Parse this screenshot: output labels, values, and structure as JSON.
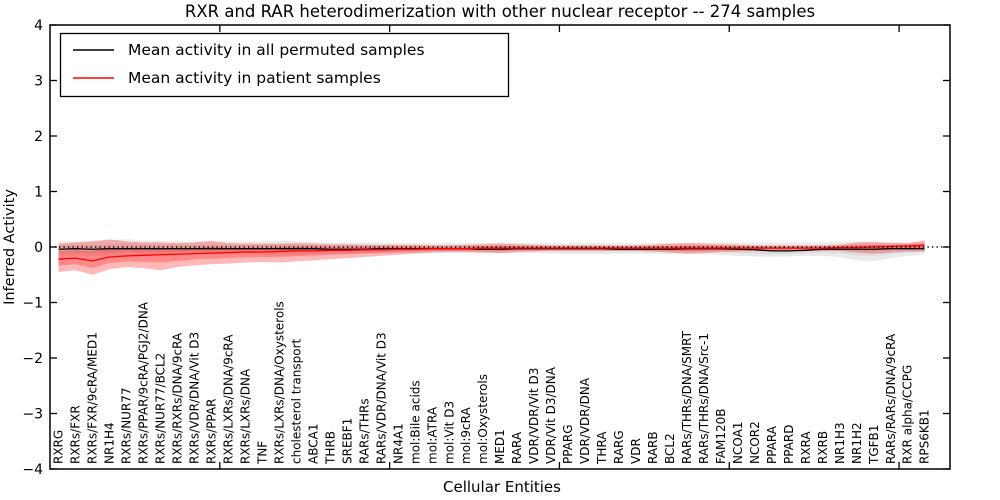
{
  "chart_data": {
    "type": "line",
    "title": "RXR and RAR heterodimerization with other nuclear receptor -- 274 samples",
    "xlabel": "Cellular Entities",
    "ylabel": "Inferred Activity",
    "ylim": [
      -4,
      4
    ],
    "xlim": [
      0,
      53
    ],
    "grid": false,
    "zero_line": {
      "value": 0,
      "style": "dotted",
      "color": "#000000"
    },
    "ytick_values": [
      4,
      3,
      2,
      1,
      0,
      -1,
      -2,
      -3,
      -4
    ],
    "ytick_labels": [
      "4",
      "3",
      "2",
      "1",
      "0",
      "−1",
      "−2",
      "−3",
      "−4"
    ],
    "xtick_positions": [
      10,
      20,
      30,
      40,
      50
    ],
    "legend": {
      "position": "upper left",
      "entries": [
        {
          "label": "Mean activity in all permuted samples",
          "color": "#000000"
        },
        {
          "label": "Mean activity in patient samples",
          "color": "#ff0000"
        }
      ]
    },
    "categories": [
      "RXRG",
      "RXRs/FXR",
      "RXRs/FXR/9cRA/MED1",
      "NR1H4",
      "RXRs/NUR77",
      "RXRs/PPAR/9cRA/PGJ2/DNA",
      "RXRs/NUR77/BCL2",
      "RXRs/RXRs/DNA/9cRA",
      "RXRs/VDR/DNA/Vit D3",
      "RXRs/PPAR",
      "RXRs/LXRs/DNA/9cRA",
      "RXRs/LXRs/DNA",
      "TNF",
      "RXRs/LXRs/DNA/Oxysterols",
      "cholesterol transport",
      "ABCA1",
      "THRB",
      "SREBF1",
      "RARs/THRs",
      "RARs/VDR/DNA/Vit D3",
      "NR4A1",
      "mol:Bile acids",
      "mol:ATRA",
      "mol:Vit D3",
      "mol:9cRA",
      "mol:Oxysterols",
      "MED1",
      "RARA",
      "VDR/VDR/Vit D3",
      "VDR/Vit D3/DNA",
      "PPARG",
      "VDR/VDR/DNA",
      "THRA",
      "RARG",
      "VDR",
      "RARB",
      "BCL2",
      "RARs/THRs/DNA/SMRT",
      "RARs/THRs/DNA/Src-1",
      "FAM120B",
      "NCOA1",
      "NCOR2",
      "PPARA",
      "PPARD",
      "RXRA",
      "RXRB",
      "NR1H3",
      "NR1H2",
      "TGFB1",
      "RARs/RARs/DNA/9cRA",
      "RXR alpha/CCPG",
      "RPS6KB1"
    ],
    "series": [
      {
        "name": "Mean activity in all permuted samples",
        "color": "#000000",
        "band_color": "#808080",
        "values": [
          -0.04,
          -0.03,
          -0.04,
          -0.03,
          -0.03,
          -0.03,
          -0.03,
          -0.03,
          -0.03,
          -0.03,
          -0.03,
          -0.03,
          -0.03,
          -0.03,
          -0.03,
          -0.03,
          -0.04,
          -0.04,
          -0.04,
          -0.03,
          -0.03,
          -0.03,
          -0.03,
          -0.03,
          -0.03,
          -0.04,
          -0.04,
          -0.03,
          -0.03,
          -0.03,
          -0.03,
          -0.03,
          -0.03,
          -0.04,
          -0.04,
          -0.04,
          -0.04,
          -0.03,
          -0.03,
          -0.03,
          -0.04,
          -0.05,
          -0.07,
          -0.07,
          -0.06,
          -0.04,
          -0.04,
          -0.04,
          -0.04,
          -0.03,
          -0.03,
          -0.03
        ],
        "band_upper": [
          0.1,
          0.1,
          0.11,
          0.12,
          0.14,
          0.12,
          0.11,
          0.1,
          0.1,
          0.1,
          0.1,
          0.1,
          0.1,
          0.11,
          0.1,
          0.09,
          0.08,
          0.08,
          0.08,
          0.08,
          0.07,
          0.07,
          0.07,
          0.07,
          0.07,
          0.07,
          0.08,
          0.07,
          0.07,
          0.07,
          0.07,
          0.07,
          0.07,
          0.07,
          0.07,
          0.07,
          0.07,
          0.07,
          0.08,
          0.09,
          0.08,
          0.08,
          0.08,
          0.08,
          0.08,
          0.08,
          0.09,
          0.1,
          0.1,
          0.09,
          0.08,
          0.08
        ],
        "band_lower": [
          -0.16,
          -0.15,
          -0.16,
          -0.15,
          -0.14,
          -0.14,
          -0.15,
          -0.14,
          -0.13,
          -0.13,
          -0.13,
          -0.13,
          -0.14,
          -0.15,
          -0.14,
          -0.13,
          -0.12,
          -0.12,
          -0.12,
          -0.12,
          -0.11,
          -0.11,
          -0.11,
          -0.11,
          -0.11,
          -0.12,
          -0.12,
          -0.11,
          -0.11,
          -0.12,
          -0.13,
          -0.13,
          -0.13,
          -0.12,
          -0.12,
          -0.12,
          -0.13,
          -0.13,
          -0.13,
          -0.14,
          -0.16,
          -0.17,
          -0.18,
          -0.17,
          -0.16,
          -0.16,
          -0.18,
          -0.24,
          -0.26,
          -0.2,
          -0.16,
          -0.13
        ]
      },
      {
        "name": "Mean activity in patient samples",
        "color": "#ff0000",
        "band_color": "#ff0000",
        "values": [
          -0.22,
          -0.2,
          -0.25,
          -0.18,
          -0.16,
          -0.15,
          -0.14,
          -0.13,
          -0.12,
          -0.11,
          -0.1,
          -0.09,
          -0.09,
          -0.08,
          -0.07,
          -0.07,
          -0.06,
          -0.06,
          -0.05,
          -0.05,
          -0.04,
          -0.04,
          -0.03,
          -0.03,
          -0.03,
          -0.02,
          -0.02,
          -0.02,
          -0.02,
          -0.02,
          -0.02,
          -0.02,
          -0.02,
          -0.02,
          -0.02,
          -0.02,
          -0.02,
          -0.02,
          -0.02,
          -0.02,
          -0.02,
          -0.02,
          -0.02,
          -0.02,
          -0.02,
          -0.02,
          -0.01,
          -0.01,
          0.0,
          0.01,
          0.02,
          0.03
        ],
        "band_upper": [
          0.06,
          0.08,
          0.1,
          0.14,
          0.1,
          0.08,
          0.08,
          0.07,
          0.08,
          0.11,
          0.07,
          0.06,
          0.06,
          0.06,
          0.07,
          0.06,
          0.05,
          0.05,
          0.04,
          0.04,
          0.04,
          0.04,
          0.03,
          0.03,
          0.04,
          0.05,
          0.06,
          0.05,
          0.04,
          0.03,
          0.03,
          0.03,
          0.03,
          0.03,
          0.03,
          0.04,
          0.06,
          0.07,
          0.06,
          0.05,
          0.04,
          0.03,
          0.03,
          0.03,
          0.03,
          0.03,
          0.04,
          0.08,
          0.09,
          0.07,
          0.07,
          0.12
        ],
        "band_lower": [
          -0.45,
          -0.42,
          -0.5,
          -0.4,
          -0.36,
          -0.38,
          -0.42,
          -0.36,
          -0.33,
          -0.31,
          -0.3,
          -0.28,
          -0.27,
          -0.28,
          -0.26,
          -0.24,
          -0.22,
          -0.2,
          -0.18,
          -0.16,
          -0.14,
          -0.12,
          -0.1,
          -0.09,
          -0.09,
          -0.1,
          -0.11,
          -0.09,
          -0.08,
          -0.07,
          -0.07,
          -0.07,
          -0.07,
          -0.07,
          -0.07,
          -0.08,
          -0.1,
          -0.12,
          -0.11,
          -0.09,
          -0.08,
          -0.07,
          -0.07,
          -0.07,
          -0.07,
          -0.07,
          -0.07,
          -0.1,
          -0.12,
          -0.1,
          -0.08,
          -0.08
        ]
      }
    ]
  }
}
